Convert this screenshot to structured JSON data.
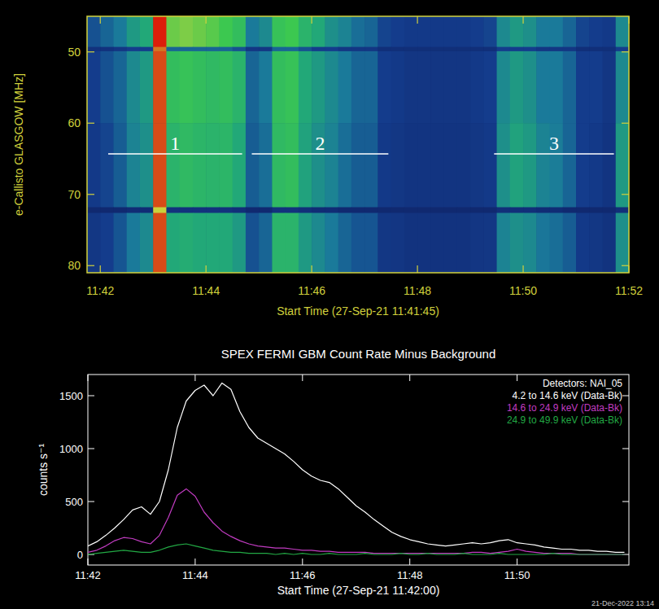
{
  "chart_data": [
    {
      "type": "heatmap",
      "y_title": "e-Callisto GLASGOW [MHz]",
      "x_title": "Start Time (27-Sep-21 11:41:45)",
      "x_edges": [
        0,
        15,
        30,
        45,
        60,
        75,
        90,
        105,
        120,
        135,
        150,
        165,
        180,
        195,
        210,
        225,
        240,
        255,
        270,
        285,
        300,
        315,
        330,
        345,
        360,
        375,
        390,
        405,
        420,
        435,
        450,
        465,
        480,
        495,
        510,
        525,
        540,
        555,
        570,
        585,
        600,
        615
      ],
      "y_edges": [
        45,
        49.3,
        49.9,
        60,
        71.8,
        72.6,
        81
      ],
      "cells": [
        [
          0.25,
          0.3,
          0.35,
          0.45,
          0.5,
          1.0,
          0.7,
          0.72,
          0.7,
          0.68,
          0.65,
          0.6,
          0.35,
          0.4,
          0.62,
          0.65,
          0.55,
          0.5,
          0.42,
          0.38,
          0.32,
          0.3,
          0.22,
          0.2,
          0.18,
          0.18,
          0.18,
          0.18,
          0.18,
          0.2,
          0.22,
          0.4,
          0.45,
          0.42,
          0.35,
          0.35,
          0.3,
          0.22,
          0.2,
          0.18,
          0.4
        ],
        [
          0.12,
          0.12,
          0.15,
          0.2,
          0.2,
          0.9,
          0.3,
          0.3,
          0.3,
          0.3,
          0.3,
          0.25,
          0.15,
          0.15,
          0.3,
          0.3,
          0.25,
          0.2,
          0.2,
          0.15,
          0.15,
          0.15,
          0.1,
          0.1,
          0.1,
          0.1,
          0.1,
          0.1,
          0.1,
          0.1,
          0.1,
          0.2,
          0.2,
          0.2,
          0.15,
          0.15,
          0.15,
          0.1,
          0.1,
          0.1,
          0.2
        ],
        [
          0.2,
          0.25,
          0.3,
          0.4,
          0.45,
          0.95,
          0.6,
          0.62,
          0.6,
          0.58,
          0.6,
          0.55,
          0.3,
          0.35,
          0.6,
          0.62,
          0.5,
          0.45,
          0.4,
          0.35,
          0.3,
          0.3,
          0.2,
          0.18,
          0.15,
          0.15,
          0.15,
          0.15,
          0.15,
          0.18,
          0.2,
          0.4,
          0.45,
          0.42,
          0.35,
          0.35,
          0.3,
          0.2,
          0.2,
          0.15,
          0.4
        ],
        [
          0.18,
          0.22,
          0.28,
          0.38,
          0.42,
          0.95,
          0.55,
          0.58,
          0.56,
          0.55,
          0.56,
          0.5,
          0.28,
          0.32,
          0.58,
          0.6,
          0.48,
          0.42,
          0.38,
          0.32,
          0.28,
          0.28,
          0.18,
          0.16,
          0.14,
          0.14,
          0.14,
          0.14,
          0.14,
          0.16,
          0.18,
          0.42,
          0.48,
          0.45,
          0.38,
          0.36,
          0.3,
          0.2,
          0.18,
          0.14,
          0.45
        ],
        [
          0.05,
          0.05,
          0.05,
          0.08,
          0.08,
          0.8,
          0.12,
          0.12,
          0.12,
          0.12,
          0.12,
          0.1,
          0.05,
          0.05,
          0.12,
          0.12,
          0.1,
          0.08,
          0.08,
          0.05,
          0.05,
          0.05,
          0.05,
          0.05,
          0.05,
          0.05,
          0.05,
          0.05,
          0.05,
          0.05,
          0.05,
          0.1,
          0.1,
          0.1,
          0.08,
          0.08,
          0.05,
          0.05,
          0.05,
          0.05,
          0.1
        ],
        [
          0.16,
          0.2,
          0.26,
          0.35,
          0.4,
          0.95,
          0.5,
          0.52,
          0.5,
          0.5,
          0.5,
          0.45,
          0.25,
          0.3,
          0.55,
          0.55,
          0.45,
          0.4,
          0.35,
          0.3,
          0.26,
          0.26,
          0.16,
          0.15,
          0.13,
          0.13,
          0.13,
          0.13,
          0.13,
          0.15,
          0.16,
          0.38,
          0.42,
          0.4,
          0.34,
          0.32,
          0.28,
          0.18,
          0.16,
          0.13,
          0.42
        ]
      ],
      "zlim": [
        0,
        1
      ],
      "xlim": [
        0,
        615
      ],
      "ylim": [
        81,
        45
      ],
      "xticks": [
        {
          "value": 15,
          "label": "11:42"
        },
        {
          "value": 135,
          "label": "11:44"
        },
        {
          "value": 255,
          "label": "11:46"
        },
        {
          "value": 375,
          "label": "11:48"
        },
        {
          "value": 495,
          "label": "11:50"
        },
        {
          "value": 615,
          "label": "11:52"
        }
      ],
      "yticks": [
        50,
        60,
        70,
        80
      ],
      "annotations": [
        {
          "text": "1",
          "x": [
            24,
            176
          ],
          "y": 64.3
        },
        {
          "text": "2",
          "x": [
            187,
            342
          ],
          "y": 64.3
        },
        {
          "text": "3",
          "x": [
            462,
            598
          ],
          "y": 64.3
        }
      ]
    },
    {
      "type": "line",
      "title": "SPEX FERMI GBM Count Rate Minus Background",
      "y_title": "counts s⁻¹",
      "x_title": "Start Time (27-Sep-21 11:42:00)",
      "legend_title": "Detectors: NAI_05",
      "legend": "top-right",
      "x": [
        0,
        10,
        20,
        30,
        40,
        50,
        60,
        70,
        80,
        90,
        100,
        110,
        120,
        130,
        140,
        150,
        160,
        170,
        180,
        190,
        200,
        210,
        220,
        230,
        240,
        250,
        260,
        270,
        280,
        290,
        300,
        310,
        320,
        330,
        340,
        350,
        360,
        370,
        380,
        390,
        400,
        410,
        420,
        430,
        440,
        450,
        460,
        470,
        480,
        490,
        500,
        510,
        520,
        530,
        540,
        550,
        560,
        570,
        580,
        590,
        600
      ],
      "series": [
        {
          "name": "4.2 to 14.6 keV (Data-Bk)",
          "color": "#ffffff",
          "values": [
            80,
            120,
            180,
            250,
            330,
            420,
            450,
            380,
            500,
            800,
            1200,
            1450,
            1550,
            1600,
            1500,
            1620,
            1560,
            1350,
            1200,
            1100,
            1050,
            1000,
            950,
            880,
            800,
            740,
            700,
            680,
            620,
            540,
            460,
            400,
            330,
            270,
            210,
            170,
            140,
            120,
            100,
            90,
            80,
            90,
            100,
            110,
            100,
            110,
            130,
            140,
            110,
            100,
            90,
            70,
            60,
            50,
            50,
            40,
            40,
            30,
            30,
            20,
            20
          ]
        },
        {
          "name": "14.6 to 24.9 keV (Data-Bk)",
          "color": "#c23cc2",
          "values": [
            20,
            40,
            80,
            130,
            160,
            150,
            120,
            100,
            180,
            350,
            560,
            620,
            550,
            400,
            300,
            220,
            170,
            130,
            100,
            80,
            70,
            60,
            60,
            50,
            40,
            40,
            30,
            30,
            20,
            20,
            20,
            20,
            10,
            10,
            10,
            10,
            10,
            10,
            10,
            10,
            10,
            10,
            10,
            20,
            20,
            10,
            20,
            30,
            50,
            30,
            20,
            10,
            10,
            10,
            10,
            0,
            0,
            0,
            0,
            0,
            0
          ]
        },
        {
          "name": "24.9 to 49.9 keV (Data-Bk)",
          "color": "#22a844",
          "values": [
            0,
            10,
            20,
            30,
            40,
            30,
            20,
            20,
            40,
            70,
            90,
            100,
            80,
            60,
            40,
            30,
            20,
            20,
            10,
            10,
            10,
            0,
            10,
            0,
            10,
            0,
            0,
            10,
            0,
            0,
            0,
            10,
            0,
            0,
            0,
            10,
            0,
            0,
            10,
            0,
            0,
            0,
            10,
            0,
            0,
            0,
            10,
            0,
            0,
            0,
            0,
            0,
            10,
            0,
            0,
            0,
            0,
            0,
            0,
            0,
            0
          ]
        }
      ],
      "xlim": [
        0,
        605
      ],
      "ylim": [
        -100,
        1700
      ],
      "xticks": [
        {
          "value": 0,
          "label": "11:42"
        },
        {
          "value": 120,
          "label": "11:44"
        },
        {
          "value": 240,
          "label": "11:46"
        },
        {
          "value": 360,
          "label": "11:48"
        },
        {
          "value": 480,
          "label": "11:50"
        }
      ],
      "yticks": [
        0,
        500,
        1000,
        1500
      ]
    }
  ],
  "footer": "21-Dec-2022 13:14"
}
